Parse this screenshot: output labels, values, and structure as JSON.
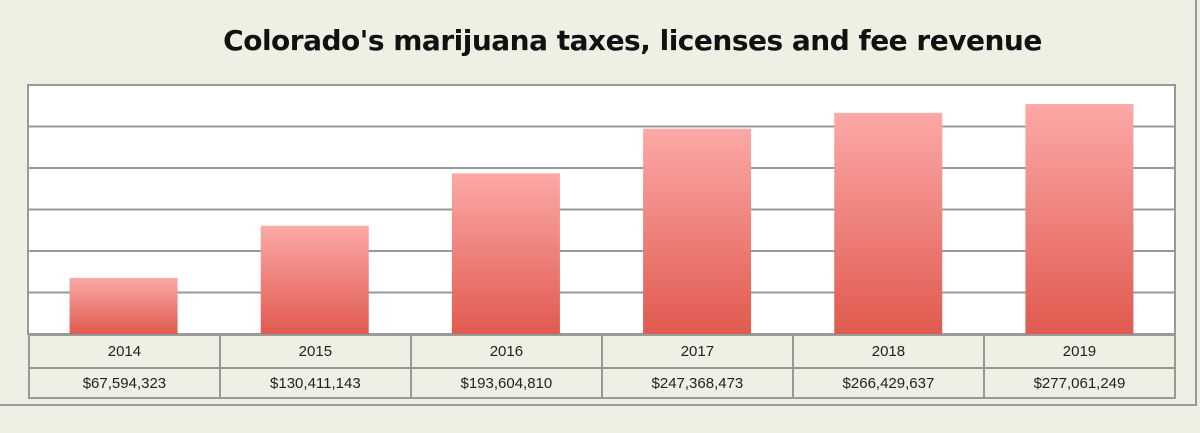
{
  "chart_data": {
    "type": "bar",
    "title": "Colorado's marijuana taxes, licenses and fee revenue",
    "categories": [
      "2014",
      "2015",
      "2016",
      "2017",
      "2018",
      "2019"
    ],
    "values": [
      67594323,
      130411143,
      193604810,
      247368473,
      266429637,
      277061249
    ],
    "value_labels": [
      "$67,594,323",
      "$130,411,143",
      "$193,604,810",
      "$247,368,473",
      "$266,429,637",
      "$277,061,249"
    ],
    "xlabel": "",
    "ylabel": "",
    "ylim": [
      0,
      300000000
    ],
    "grid_step": 50000000,
    "grid": true,
    "legend": "none",
    "colors": {
      "bar_top": "#fca9a7",
      "bar_bottom": "#e05a4f",
      "grid": "#999999",
      "background": "#eef0e4"
    }
  }
}
